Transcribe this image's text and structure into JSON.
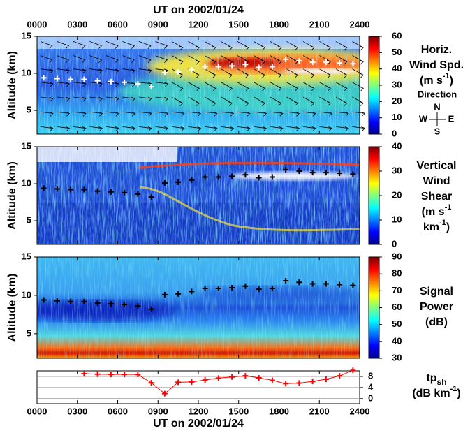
{
  "chart_data": [
    {
      "type": "heatmap",
      "xaxis_position": "top",
      "xlabel": "UT on 2002/01/24",
      "xlim": [
        0,
        24
      ],
      "xticks": [
        {
          "value": 0,
          "label": "0000"
        },
        {
          "value": 3,
          "label": "0300"
        },
        {
          "value": 6,
          "label": "0600"
        },
        {
          "value": 9,
          "label": "0900"
        },
        {
          "value": 12,
          "label": "1200"
        },
        {
          "value": 15,
          "label": "1500"
        },
        {
          "value": 18,
          "label": "1800"
        },
        {
          "value": 21,
          "label": "2100"
        },
        {
          "value": 24,
          "label": "2400"
        }
      ],
      "ylabel": "Altitude (km)",
      "ylim": [
        1.8,
        15
      ],
      "yticks": [
        5,
        10,
        15
      ],
      "colorbar": {
        "lim": [
          0,
          60
        ],
        "ticks": [
          0,
          10,
          20,
          30,
          40,
          50,
          60
        ],
        "label": [
          {
            "text": "Horiz."
          },
          {
            "text": "Wind Spd."
          },
          {
            "text": "(m s",
            "sup": "-1",
            "tail": ")"
          }
        ]
      },
      "legend": {
        "title": "Direction",
        "labels": [
          "N",
          "W",
          "E",
          "S"
        ]
      },
      "marker_color": "#ffffff"
    },
    {
      "type": "heatmap",
      "xlim": [
        0,
        24
      ],
      "ylabel": "Altitude (km)",
      "ylim": [
        1.8,
        15
      ],
      "yticks": [
        5,
        10,
        15
      ],
      "colorbar": {
        "lim": [
          0,
          40
        ],
        "ticks": [
          0,
          10,
          20,
          30,
          40
        ],
        "label": [
          {
            "text": "Vertical"
          },
          {
            "text": "Wind"
          },
          {
            "text": "Shear"
          },
          {
            "text": "(m s",
            "sup": "-1"
          },
          {
            "text": "km",
            "sup": "-1",
            "tail": ")"
          }
        ]
      },
      "marker_color": "#000000"
    },
    {
      "type": "heatmap",
      "xlim": [
        0,
        24
      ],
      "ylabel": "Altitude (km)",
      "ylim": [
        1.8,
        15
      ],
      "yticks": [
        5,
        10,
        15
      ],
      "colorbar": {
        "lim": [
          30,
          90
        ],
        "ticks": [
          30,
          40,
          50,
          60,
          70,
          80,
          90
        ],
        "label": [
          {
            "text": "Signal"
          },
          {
            "text": "Power"
          },
          {
            "text": "(dB)"
          }
        ]
      },
      "markers": {
        "x": [
          0.5,
          1.5,
          2.5,
          3.5,
          4.5,
          5.5,
          6.5,
          7.5,
          8.5,
          9.5,
          10.5,
          11.5,
          12.5,
          13.5,
          14.5,
          15.5,
          16.5,
          17.5,
          18.5,
          19.5,
          20.5,
          21.5,
          22.5,
          23.5
        ],
        "values": [
          9.4,
          9.3,
          9.2,
          9.2,
          9.0,
          8.9,
          8.8,
          8.6,
          8.2,
          10.1,
          10.2,
          10.5,
          10.9,
          10.9,
          11.0,
          11.2,
          10.8,
          10.9,
          11.9,
          11.7,
          11.5,
          11.5,
          11.4,
          11.3
        ]
      },
      "marker_color": "#000000"
    },
    {
      "type": "line",
      "xaxis_position": "bottom",
      "xlabel": "UT on 2002/01/24",
      "xlim": [
        0,
        24
      ],
      "xticks": [
        {
          "value": 0,
          "label": "0000"
        },
        {
          "value": 3,
          "label": "0300"
        },
        {
          "value": 6,
          "label": "0600"
        },
        {
          "value": 9,
          "label": "0900"
        },
        {
          "value": 12,
          "label": "1200"
        },
        {
          "value": 15,
          "label": "1500"
        },
        {
          "value": 18,
          "label": "1800"
        },
        {
          "value": 21,
          "label": "2100"
        },
        {
          "value": 24,
          "label": "2400"
        }
      ],
      "ylim": [
        -1.8,
        10
      ],
      "yticks": [
        0,
        4,
        8
      ],
      "yaxis_position": "right",
      "grid": true,
      "x": [
        0.5,
        1.5,
        2.5,
        3.5,
        4.5,
        5.5,
        6.5,
        7.5,
        8.5,
        9.5,
        10.5,
        11.5,
        12.5,
        13.5,
        14.5,
        15.5,
        16.5,
        17.5,
        18.5,
        19.5,
        20.5,
        21.5,
        22.5,
        23.5
      ],
      "series": [
        {
          "color": "#ff0000",
          "values": [
            null,
            null,
            null,
            9.0,
            8.8,
            8.7,
            8.7,
            8.7,
            5.7,
            1.8,
            5.9,
            6.0,
            6.7,
            7.4,
            7.8,
            8.2,
            7.5,
            6.6,
            5.4,
            5.6,
            6.2,
            7.0,
            8.2,
            10.2
          ]
        }
      ],
      "label": [
        {
          "text": "tp",
          "sub": "sh"
        },
        {
          "text": "(dB km",
          "sup": "-1",
          "tail": ")"
        }
      ]
    }
  ]
}
